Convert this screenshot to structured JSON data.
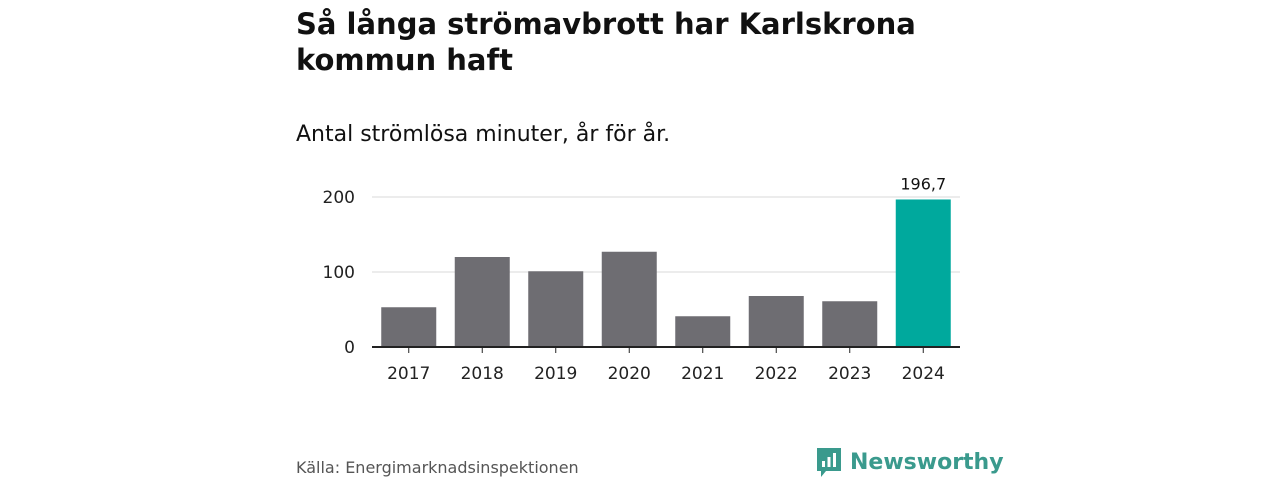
{
  "header": {
    "title": "Så långa strömavbrott har Karlskrona kommun haft",
    "subtitle": "Antal strömlösa minuter, år för år."
  },
  "chart_data": {
    "type": "bar",
    "categories": [
      "2017",
      "2018",
      "2019",
      "2020",
      "2021",
      "2022",
      "2023",
      "2024"
    ],
    "values": [
      53,
      120,
      101,
      127,
      41,
      68,
      61,
      196.7
    ],
    "data_labels": [
      null,
      null,
      null,
      null,
      null,
      null,
      null,
      "196,7"
    ],
    "highlight_index": 7,
    "yticks": [
      0,
      100,
      200
    ],
    "ylim": [
      0,
      200
    ],
    "grid": true,
    "colors": {
      "bar": "#6e6d72",
      "highlight": "#00a99d",
      "grid": "#d9d9d9",
      "axis": "#222222"
    }
  },
  "footer": {
    "source": "Källa: Energimarknadsinspektionen",
    "brand": "Newsworthy",
    "brand_icon": "newsworthy-logo-icon",
    "brand_color": "#3a9a8d"
  }
}
